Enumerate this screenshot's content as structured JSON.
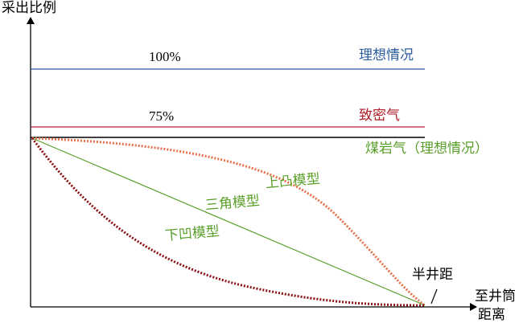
{
  "axes": {
    "y_label": "采出比例",
    "x_label_line1": "至井筒",
    "x_label_line2": "距离"
  },
  "lines": {
    "ideal_value": "100%",
    "ideal_label": "理想情况",
    "tight_value": "75%",
    "tight_label": "致密气",
    "coal_label": "煤岩气（理想情况）"
  },
  "curves": {
    "convex": "上凸模型",
    "triangle": "三角模型",
    "concave": "下凹模型"
  },
  "half_spacing": "半井距"
}
